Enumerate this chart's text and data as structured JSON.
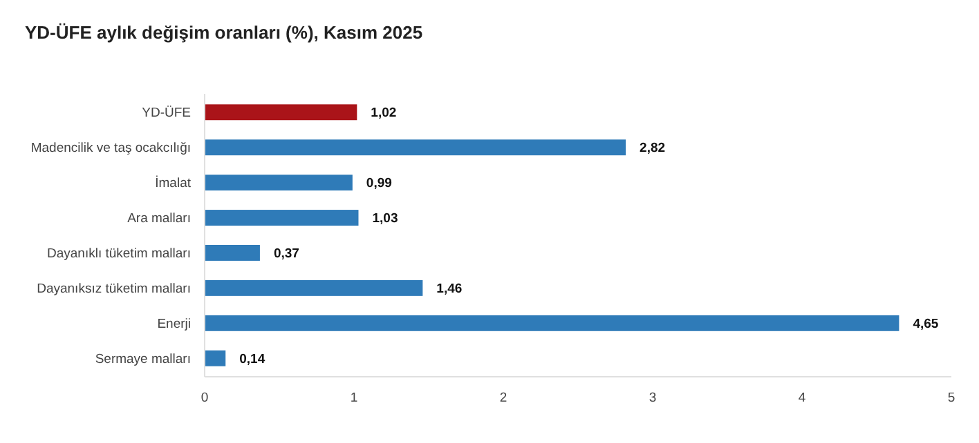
{
  "chart_data": {
    "type": "bar",
    "orientation": "horizontal",
    "title": "YD-ÜFE aylık değişim oranları (%), Kasım 2025",
    "categories": [
      "YD-ÜFE",
      "Madencilik ve taş ocakcılığı",
      "İmalat",
      "Ara malları",
      "Dayanıklı tüketim malları",
      "Dayanıksız tüketim malları",
      "Enerji",
      "Sermaye malları"
    ],
    "values": [
      1.02,
      2.82,
      0.99,
      1.03,
      0.37,
      1.46,
      4.65,
      0.14
    ],
    "colors": [
      "#aa1419",
      "#2f7bb8",
      "#2f7bb8",
      "#2f7bb8",
      "#2f7bb8",
      "#2f7bb8",
      "#2f7bb8",
      "#2f7bb8"
    ],
    "value_labels": [
      "1,02",
      "2,82",
      "0,99",
      "1,03",
      "0,37",
      "1,46",
      "4,65",
      "0,14"
    ],
    "xlim": [
      0,
      5
    ],
    "xticks": [
      0,
      1,
      2,
      3,
      4,
      5
    ],
    "grid": false
  }
}
